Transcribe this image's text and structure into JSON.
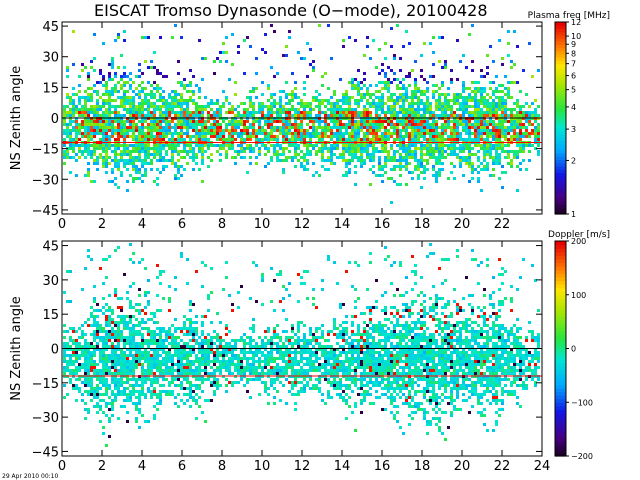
{
  "title": "EISCAT Tromso Dynasonde (O−mode),  20100428",
  "footer_stamp": "29 Apr 2010 00:10",
  "chart_data": [
    {
      "type": "heatmap",
      "panel": "top",
      "ylabel": "NS Zenith angle",
      "x_ticks": [
        0,
        2,
        4,
        6,
        8,
        10,
        12,
        14,
        16,
        18,
        20,
        22
      ],
      "xlim": [
        0,
        24
      ],
      "y_ticks": [
        -45,
        -30,
        -15,
        0,
        15,
        30,
        45
      ],
      "ylim": [
        -47,
        47
      ],
      "reference_lines": [
        {
          "y": 0,
          "color": "#000000"
        },
        {
          "y": -12,
          "color": "#ff0000"
        }
      ],
      "colorbar": {
        "title": "Plasma freq [MHz]",
        "scale": "log",
        "range": [
          1,
          12
        ],
        "ticks": [
          1,
          2,
          3,
          4,
          5,
          6,
          7,
          8,
          9,
          10,
          12
        ],
        "tick_labels": [
          "1",
          "2",
          "3",
          "4",
          "5",
          "6",
          "7",
          "8",
          "9",
          "10",
          "12"
        ]
      },
      "activity_by_hour": [
        0.55,
        0.85,
        1.0,
        0.95,
        0.9,
        0.85,
        0.7,
        0.4,
        0.35,
        0.45,
        0.55,
        0.6,
        0.6,
        0.6,
        0.75,
        0.8,
        0.9,
        0.95,
        0.9,
        0.75,
        0.9,
        0.9,
        0.6,
        0.3
      ]
    },
    {
      "type": "heatmap",
      "panel": "bottom",
      "ylabel": "NS Zenith angle",
      "x_ticks": [
        0,
        2,
        4,
        6,
        8,
        10,
        12,
        14,
        16,
        18,
        20,
        22,
        24
      ],
      "xlim": [
        0,
        24
      ],
      "y_ticks": [
        -45,
        -30,
        -15,
        0,
        15,
        30,
        45
      ],
      "ylim": [
        -47,
        47
      ],
      "reference_lines": [
        {
          "y": 0,
          "color": "#000000"
        },
        {
          "y": -12,
          "color": "#ff0000"
        }
      ],
      "colorbar": {
        "title": "Doppler [m/s]",
        "scale": "linear",
        "range": [
          -200,
          200
        ],
        "ticks": [
          -200,
          -100,
          0,
          100,
          200
        ],
        "tick_labels": [
          "−200",
          "−100",
          "0",
          "100",
          "200"
        ]
      },
      "activity_by_hour": [
        0.45,
        0.75,
        1.0,
        0.95,
        0.75,
        0.55,
        0.6,
        0.4,
        0.3,
        0.35,
        0.4,
        0.45,
        0.45,
        0.45,
        0.6,
        0.7,
        0.85,
        0.95,
        1.0,
        0.85,
        0.8,
        0.9,
        0.55,
        0.25
      ]
    }
  ]
}
